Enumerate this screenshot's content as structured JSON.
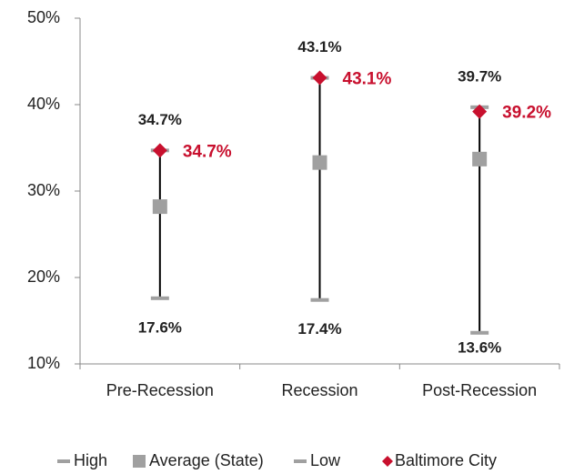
{
  "chart_data": {
    "type": "range",
    "categories": [
      "Pre-Recession",
      "Recession",
      "Post-Recession"
    ],
    "series": [
      {
        "name": "High",
        "color": "#a0a0a0",
        "values": [
          34.7,
          43.1,
          39.7
        ],
        "value_labels": [
          "34.7%",
          "43.1%",
          "39.7%"
        ]
      },
      {
        "name": "Average (State)",
        "color": "#a0a0a0",
        "values": [
          28.2,
          33.3,
          33.7
        ]
      },
      {
        "name": "Low",
        "color": "#a0a0a0",
        "values": [
          17.6,
          17.4,
          13.6
        ],
        "value_labels": [
          "17.6%",
          "17.4%",
          "13.6%"
        ]
      },
      {
        "name": "Baltimore City",
        "color": "#c8102e",
        "values": [
          34.7,
          43.1,
          39.2
        ],
        "value_labels": [
          "34.7%",
          "43.1%",
          "39.2%"
        ]
      }
    ],
    "ylim": [
      10,
      50
    ],
    "yticks": [
      {
        "value": 10,
        "label": "10%"
      },
      {
        "value": 20,
        "label": "20%"
      },
      {
        "value": 30,
        "label": "30%"
      },
      {
        "value": 40,
        "label": "40%"
      },
      {
        "value": 50,
        "label": "50%"
      }
    ],
    "line_color": "#000000"
  }
}
